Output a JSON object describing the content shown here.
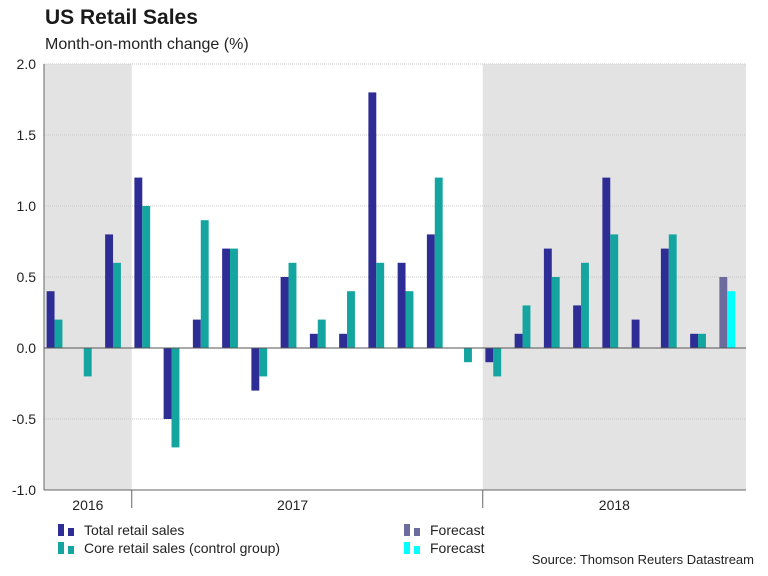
{
  "chart_data": {
    "type": "bar",
    "title": "US Retail Sales",
    "subtitle": "Month-on-month change (%)",
    "ylim": [
      -1.0,
      2.0
    ],
    "yticks": [
      "2.0",
      "1.5",
      "1.0",
      "0.5",
      "0.0",
      "-0.5",
      "-1.0"
    ],
    "ytick_values": [
      2.0,
      1.5,
      1.0,
      0.5,
      0.0,
      -0.5,
      -1.0
    ],
    "year_labels": [
      {
        "label": "2016",
        "center_month": 1.5
      },
      {
        "label": "2017",
        "center_month": 8.5
      },
      {
        "label": "2018",
        "center_month": 19.5
      }
    ],
    "shaded_month_ranges": [
      [
        0,
        3
      ],
      [
        15,
        24
      ]
    ],
    "months": 24,
    "series": [
      {
        "name": "Total retail sales",
        "color": "#2e2d96",
        "values": [
          0.4,
          0.0,
          0.8,
          1.2,
          -0.5,
          0.2,
          0.7,
          -0.3,
          0.5,
          0.1,
          0.1,
          1.8,
          0.6,
          0.8,
          0.0,
          -0.1,
          0.1,
          0.7,
          0.3,
          1.2,
          0.2,
          0.7,
          0.1,
          null
        ]
      },
      {
        "name": "Core retail sales (control group)",
        "color": "#14a5a0",
        "values": [
          0.2,
          -0.2,
          0.6,
          1.0,
          -0.7,
          0.9,
          0.7,
          -0.2,
          0.6,
          0.2,
          0.4,
          0.6,
          0.4,
          1.2,
          -0.1,
          -0.2,
          0.3,
          0.5,
          0.6,
          0.8,
          0.0,
          0.8,
          0.1,
          null
        ]
      },
      {
        "name": "Forecast",
        "color": "#6b6b9e",
        "values": [
          null,
          null,
          null,
          null,
          null,
          null,
          null,
          null,
          null,
          null,
          null,
          null,
          null,
          null,
          null,
          null,
          null,
          null,
          null,
          null,
          null,
          null,
          null,
          0.5
        ]
      },
      {
        "name": "Forecast",
        "color": "#00ffff",
        "values": [
          null,
          null,
          null,
          null,
          null,
          null,
          null,
          null,
          null,
          null,
          null,
          null,
          null,
          null,
          null,
          null,
          null,
          null,
          null,
          null,
          null,
          null,
          null,
          0.4
        ]
      }
    ]
  },
  "legend": [
    {
      "label": "Total retail sales",
      "color": "#2e2d96"
    },
    {
      "label": "Core retail sales (control group)",
      "color": "#14a5a0"
    },
    {
      "label": "Forecast",
      "color": "#6b6b9e"
    },
    {
      "label": "Forecast",
      "color": "#00ffff"
    }
  ],
  "source": "Source: Thomson Reuters Datastream"
}
